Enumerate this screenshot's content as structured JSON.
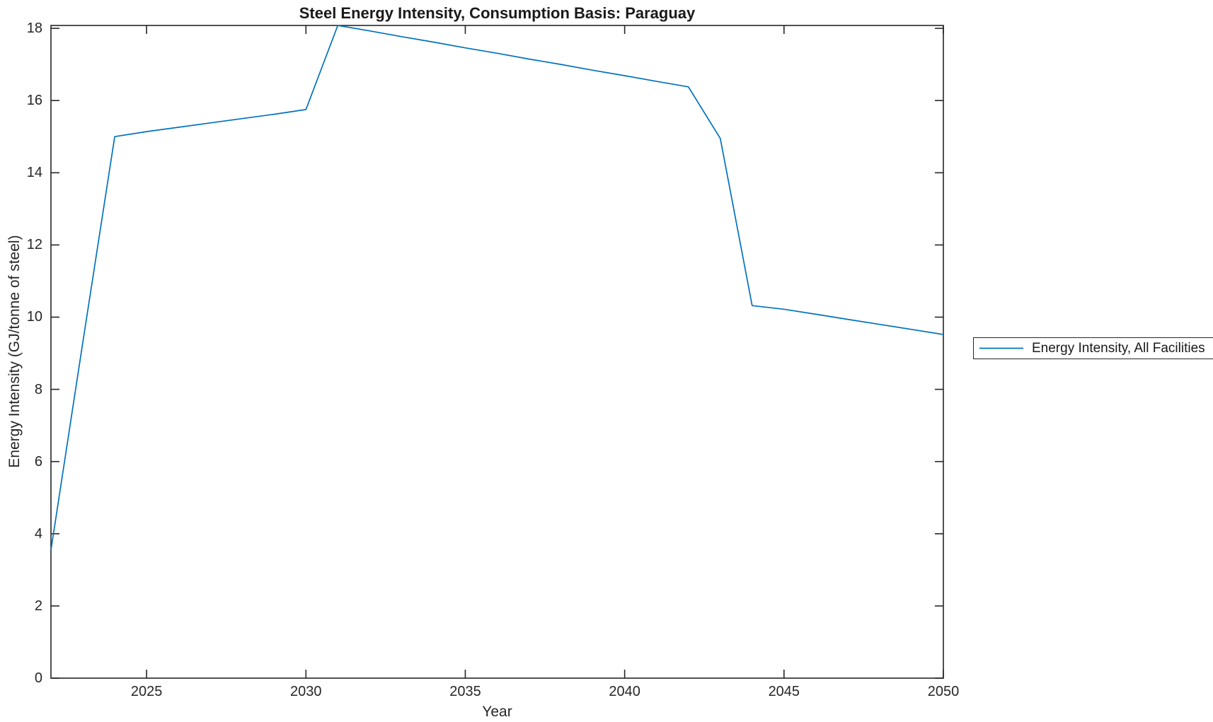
{
  "title": "Steel Energy Intensity, Consumption Basis: Paraguay",
  "colors": {
    "line": "#0072BD",
    "axis": "#262626",
    "text": "#262626",
    "background": "#ffffff"
  },
  "legend": {
    "position": "outside-right",
    "items": [
      {
        "label": "Energy Intensity, All Facilities",
        "color": "#0072BD"
      }
    ]
  },
  "chart_data": {
    "type": "line",
    "title": "Steel Energy Intensity, Consumption Basis: Paraguay",
    "xlabel": "Year",
    "ylabel": "Energy Intensity (GJ/tonne of steel)",
    "xlim": [
      2022,
      2050
    ],
    "ylim": [
      0,
      18.08
    ],
    "x_ticks": [
      2025,
      2030,
      2035,
      2040,
      2045,
      2050
    ],
    "y_ticks": [
      0,
      2,
      4,
      6,
      8,
      10,
      12,
      14,
      16,
      18
    ],
    "grid": false,
    "legend_position": "outside-right",
    "series": [
      {
        "name": "Energy Intensity, All Facilities",
        "color": "#0072BD",
        "x": [
          2022,
          2023,
          2024,
          2025,
          2026,
          2027,
          2028,
          2029,
          2030,
          2031,
          2032,
          2033,
          2034,
          2035,
          2036,
          2037,
          2038,
          2039,
          2040,
          2041,
          2042,
          2043,
          2044,
          2045,
          2046,
          2047,
          2048,
          2049,
          2050
        ],
        "y": [
          3.55,
          9.3,
          15.0,
          15.14,
          15.26,
          15.38,
          15.5,
          15.62,
          15.75,
          18.08,
          17.93,
          17.77,
          17.62,
          17.46,
          17.31,
          17.15,
          17.0,
          16.84,
          16.69,
          16.53,
          16.38,
          14.95,
          10.32,
          10.22,
          10.08,
          9.94,
          9.8,
          9.66,
          9.52
        ]
      }
    ]
  }
}
